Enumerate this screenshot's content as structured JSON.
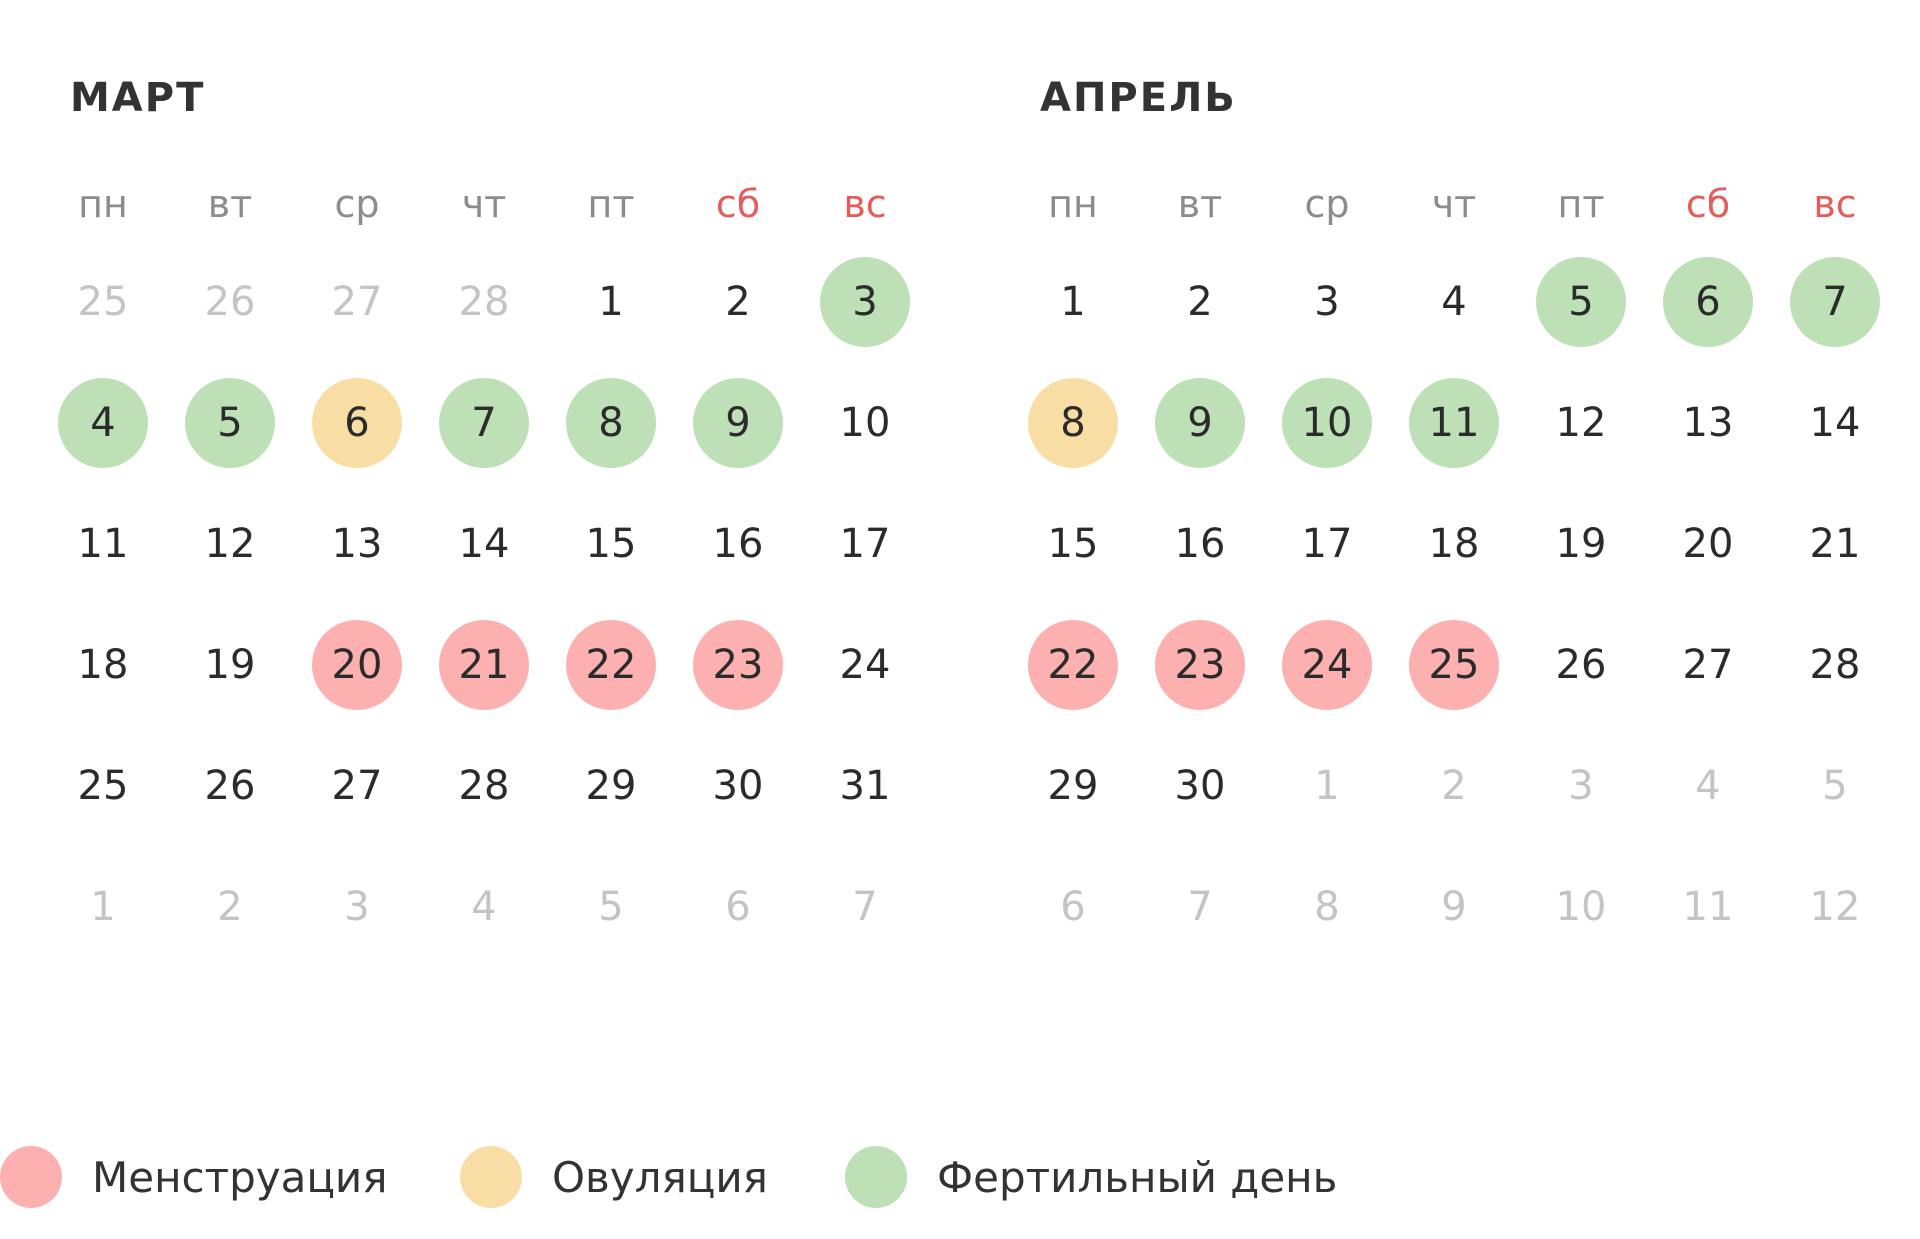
{
  "colors": {
    "menstruation": "#fdb0b0",
    "ovulation": "#f8dea4",
    "fertile": "#bde0b7",
    "weekend_text": "#e35d5d",
    "muted_text": "#c4c4c4"
  },
  "months": [
    {
      "title": "МАРТ",
      "weekdays": [
        "пн",
        "вт",
        "ср",
        "чт",
        "пт",
        "сб",
        "вс"
      ],
      "weeks": [
        [
          {
            "d": "25",
            "m": true
          },
          {
            "d": "26",
            "m": true
          },
          {
            "d": "27",
            "m": true
          },
          {
            "d": "28",
            "m": true
          },
          {
            "d": "1"
          },
          {
            "d": "2"
          },
          {
            "d": "3",
            "t": "fertile"
          }
        ],
        [
          {
            "d": "4",
            "t": "fertile"
          },
          {
            "d": "5",
            "t": "fertile"
          },
          {
            "d": "6",
            "t": "ovulation"
          },
          {
            "d": "7",
            "t": "fertile"
          },
          {
            "d": "8",
            "t": "fertile"
          },
          {
            "d": "9",
            "t": "fertile"
          },
          {
            "d": "10"
          }
        ],
        [
          {
            "d": "11"
          },
          {
            "d": "12"
          },
          {
            "d": "13"
          },
          {
            "d": "14"
          },
          {
            "d": "15"
          },
          {
            "d": "16"
          },
          {
            "d": "17"
          }
        ],
        [
          {
            "d": "18"
          },
          {
            "d": "19"
          },
          {
            "d": "20",
            "t": "menstruation"
          },
          {
            "d": "21",
            "t": "menstruation"
          },
          {
            "d": "22",
            "t": "menstruation"
          },
          {
            "d": "23",
            "t": "menstruation"
          },
          {
            "d": "24"
          }
        ],
        [
          {
            "d": "25"
          },
          {
            "d": "26"
          },
          {
            "d": "27"
          },
          {
            "d": "28"
          },
          {
            "d": "29"
          },
          {
            "d": "30"
          },
          {
            "d": "31"
          }
        ],
        [
          {
            "d": "1",
            "m": true
          },
          {
            "d": "2",
            "m": true
          },
          {
            "d": "3",
            "m": true
          },
          {
            "d": "4",
            "m": true
          },
          {
            "d": "5",
            "m": true
          },
          {
            "d": "6",
            "m": true
          },
          {
            "d": "7",
            "m": true
          }
        ]
      ]
    },
    {
      "title": "АПРЕЛЬ",
      "weekdays": [
        "пн",
        "вт",
        "ср",
        "чт",
        "пт",
        "сб",
        "вс"
      ],
      "weeks": [
        [
          {
            "d": "1"
          },
          {
            "d": "2"
          },
          {
            "d": "3"
          },
          {
            "d": "4"
          },
          {
            "d": "5",
            "t": "fertile"
          },
          {
            "d": "6",
            "t": "fertile"
          },
          {
            "d": "7",
            "t": "fertile"
          }
        ],
        [
          {
            "d": "8",
            "t": "ovulation"
          },
          {
            "d": "9",
            "t": "fertile"
          },
          {
            "d": "10",
            "t": "fertile"
          },
          {
            "d": "11",
            "t": "fertile"
          },
          {
            "d": "12"
          },
          {
            "d": "13"
          },
          {
            "d": "14"
          }
        ],
        [
          {
            "d": "15"
          },
          {
            "d": "16"
          },
          {
            "d": "17"
          },
          {
            "d": "18"
          },
          {
            "d": "19"
          },
          {
            "d": "20"
          },
          {
            "d": "21"
          }
        ],
        [
          {
            "d": "22",
            "t": "menstruation"
          },
          {
            "d": "23",
            "t": "menstruation"
          },
          {
            "d": "24",
            "t": "menstruation"
          },
          {
            "d": "25",
            "t": "menstruation"
          },
          {
            "d": "26"
          },
          {
            "d": "27"
          },
          {
            "d": "28"
          }
        ],
        [
          {
            "d": "29"
          },
          {
            "d": "30"
          },
          {
            "d": "1",
            "m": true
          },
          {
            "d": "2",
            "m": true
          },
          {
            "d": "3",
            "m": true
          },
          {
            "d": "4",
            "m": true
          },
          {
            "d": "5",
            "m": true
          }
        ],
        [
          {
            "d": "6",
            "m": true
          },
          {
            "d": "7",
            "m": true
          },
          {
            "d": "8",
            "m": true
          },
          {
            "d": "9",
            "m": true
          },
          {
            "d": "10",
            "m": true
          },
          {
            "d": "11",
            "m": true
          },
          {
            "d": "12",
            "m": true
          }
        ]
      ]
    }
  ],
  "legend": [
    {
      "key": "menstruation",
      "label": "Менструация"
    },
    {
      "key": "ovulation",
      "label": "Овуляция"
    },
    {
      "key": "fertile",
      "label": "Фертильный день"
    }
  ]
}
